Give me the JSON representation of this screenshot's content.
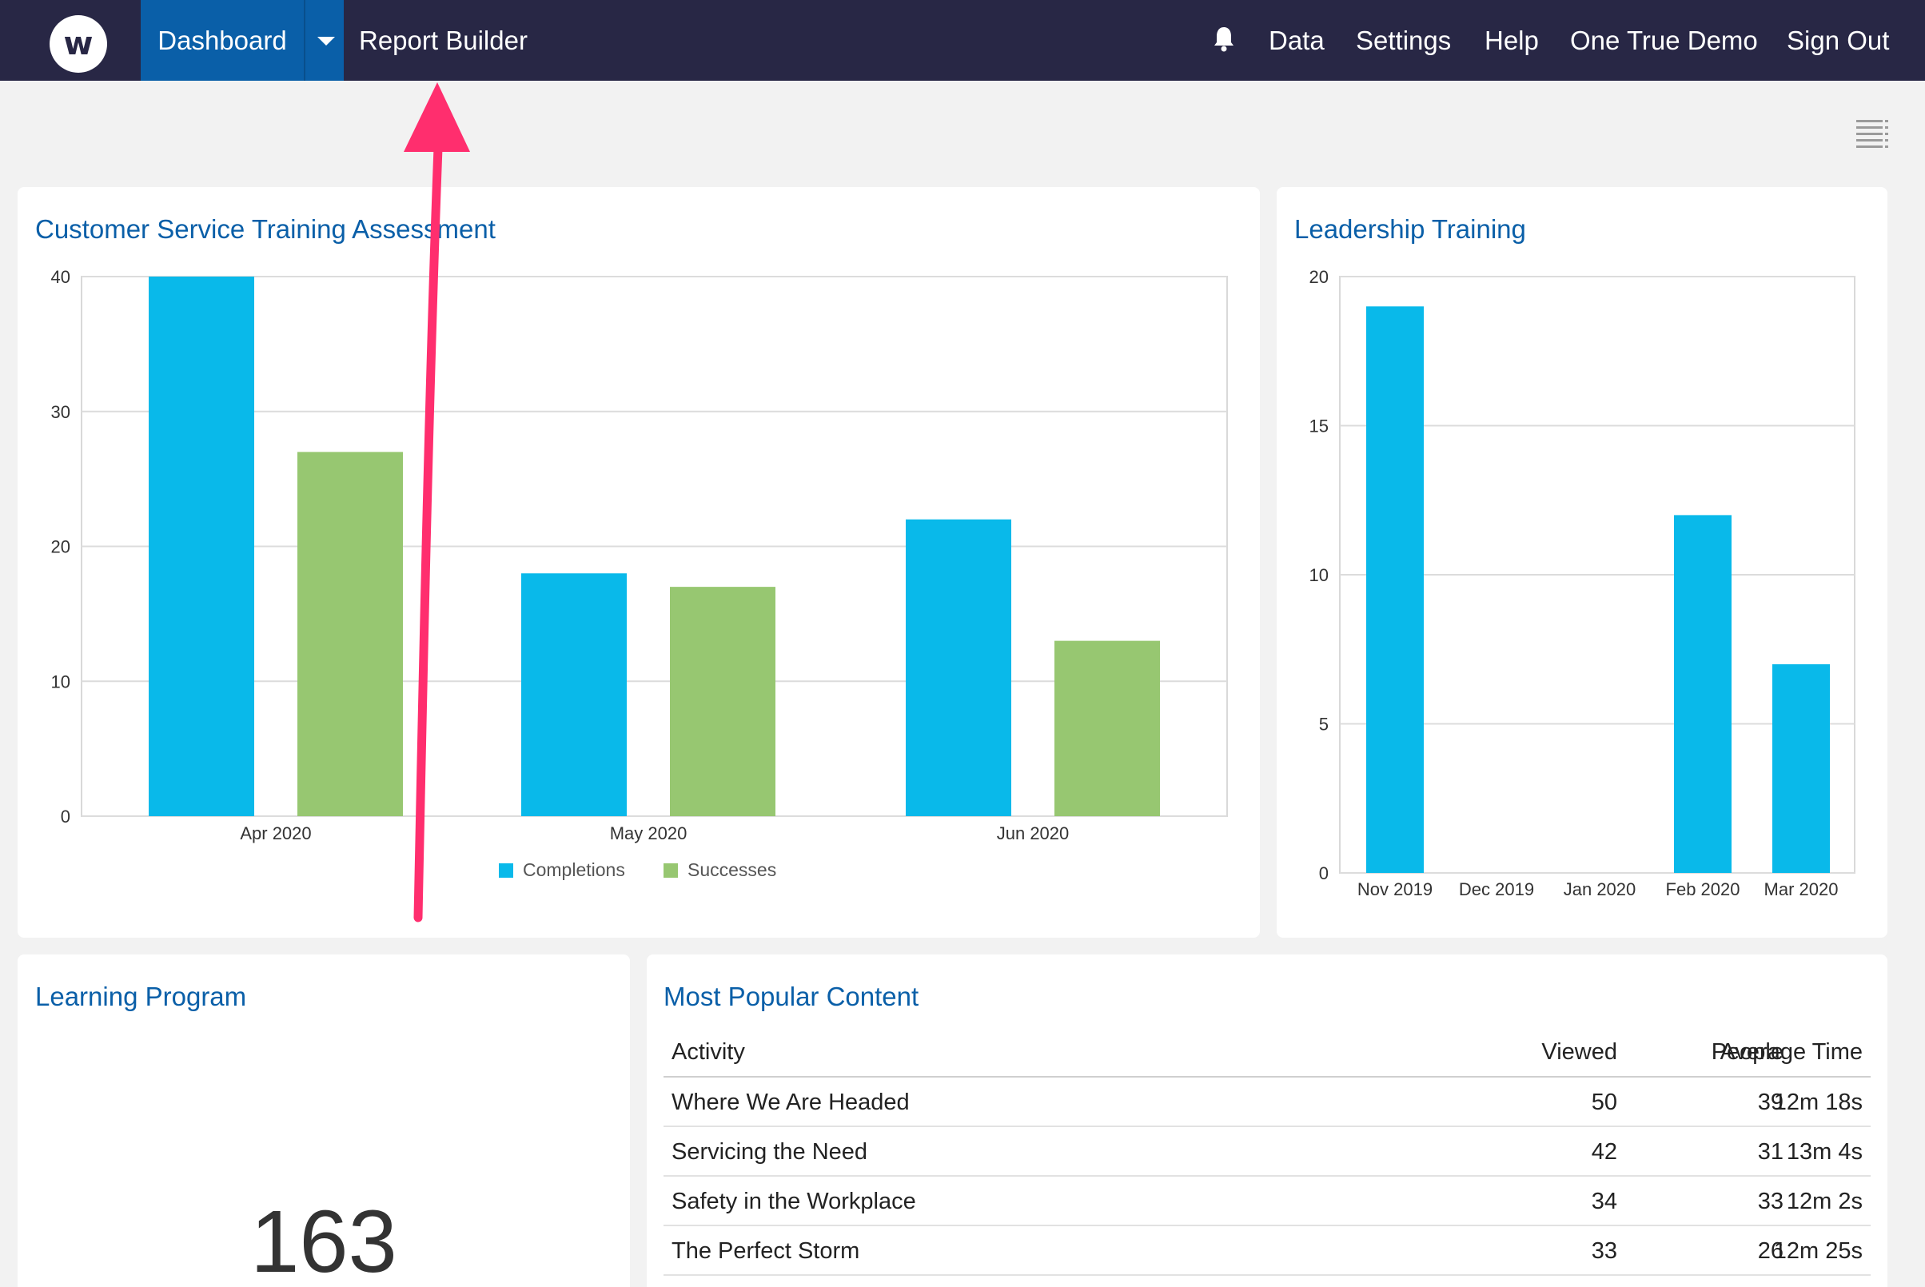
{
  "nav": {
    "logo_letter": "w",
    "dashboard": "Dashboard",
    "report_builder": "Report Builder",
    "data": "Data",
    "settings": "Settings",
    "help": "Help",
    "account": "One True Demo",
    "sign_out": "Sign Out"
  },
  "colors": {
    "nav_bg": "#282745",
    "accent": "#0a5fa8",
    "completions": "#09b9ea",
    "successes": "#97c771",
    "annotation_arrow": "#ff2e6e"
  },
  "cards": {
    "customer_service": {
      "title": "Customer Service Training Assessment"
    },
    "leadership": {
      "title": "Leadership Training"
    },
    "learning_program": {
      "title": "Learning Program",
      "value": "163"
    },
    "popular": {
      "title": "Most Popular Content"
    }
  },
  "chart_data": [
    {
      "type": "bar",
      "title": "Customer Service Training Assessment",
      "categories": [
        "Apr 2020",
        "May 2020",
        "Jun 2020"
      ],
      "series": [
        {
          "name": "Completions",
          "values": [
            40,
            18,
            22
          ]
        },
        {
          "name": "Successes",
          "values": [
            27,
            17,
            13
          ]
        }
      ],
      "ylim": [
        0,
        40
      ],
      "yticks": [
        0,
        10,
        20,
        30,
        40
      ],
      "grid": true,
      "legend": "bottom"
    },
    {
      "type": "bar",
      "title": "Leadership Training",
      "categories": [
        "Nov 2019",
        "Dec 2019",
        "Jan 2020",
        "Feb 2020",
        "Mar 2020"
      ],
      "series": [
        {
          "values": [
            19,
            0,
            0,
            12,
            7
          ]
        }
      ],
      "ylim": [
        0,
        20
      ],
      "yticks": [
        0,
        5,
        10,
        15,
        20
      ],
      "grid": true
    }
  ],
  "table": {
    "headers": {
      "activity": "Activity",
      "viewed": "Viewed",
      "people": "People",
      "avg": "Average Time"
    },
    "rows": [
      {
        "activity": "Where We Are Headed",
        "viewed": "50",
        "people": "39",
        "avg": "12m 18s"
      },
      {
        "activity": "Servicing the Need",
        "viewed": "42",
        "people": "31",
        "avg": "13m 4s"
      },
      {
        "activity": "Safety in the Workplace",
        "viewed": "34",
        "people": "33",
        "avg": "12m 2s"
      },
      {
        "activity": "The Perfect Storm",
        "viewed": "33",
        "people": "26",
        "avg": "12m 25s"
      }
    ]
  }
}
